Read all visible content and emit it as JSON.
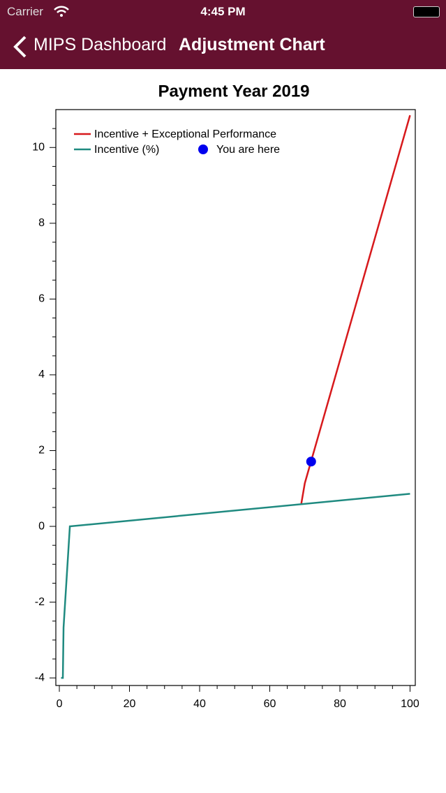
{
  "status_bar": {
    "carrier": "Carrier",
    "time": "4:45 PM"
  },
  "nav_bar": {
    "back": "MIPS Dashboard",
    "title": "Adjustment Chart"
  },
  "chart_data": {
    "type": "line",
    "title": "Payment Year 2019",
    "xlim": [
      -1,
      101.5
    ],
    "ylim": [
      -4.2,
      11
    ],
    "xticks": [
      0,
      20,
      40,
      60,
      80,
      100
    ],
    "yticks": [
      -4,
      -2,
      0,
      2,
      4,
      6,
      8,
      10
    ],
    "xminorticks": [
      5,
      10,
      15,
      25,
      30,
      35,
      45,
      50,
      55,
      65,
      70,
      75,
      85,
      90,
      95
    ],
    "yminorticks": [
      -3.5,
      -3,
      -2.5,
      -1.5,
      -1,
      -0.5,
      0.5,
      1,
      1.5,
      2.5,
      3,
      3.5,
      4.5,
      5,
      5.5,
      6.5,
      7,
      7.5,
      8.5,
      9,
      9.5,
      10.5
    ],
    "series": [
      {
        "name": "Incentive + Exceptional Performance",
        "type": "line",
        "color": "#d7191c",
        "x": [
          69,
          70,
          100
        ],
        "values": [
          0.6,
          1.14,
          10.85
        ]
      },
      {
        "name": "Incentive (%)",
        "type": "line",
        "color": "#1f8a80",
        "x": [
          0.5,
          1,
          1.2,
          3,
          100
        ],
        "values": [
          -4,
          -4,
          -2.67,
          0,
          0.86
        ]
      },
      {
        "name": "You are here",
        "type": "scatter",
        "color": "#0000ee",
        "x": [
          71.8
        ],
        "values": [
          1.71
        ]
      }
    ]
  }
}
